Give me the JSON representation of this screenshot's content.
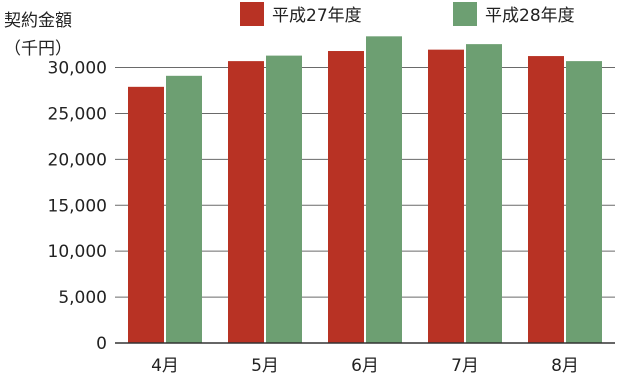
{
  "chart_data": {
    "type": "bar",
    "ylabel_line1": "契約金額",
    "ylabel_line2": "（千円）",
    "categories": [
      "4月",
      "5月",
      "6月",
      "7月",
      "8月"
    ],
    "series": [
      {
        "name": "平成27年度",
        "values": [
          27900,
          30700,
          31800,
          31950,
          31250
        ],
        "color": "#b83224"
      },
      {
        "name": "平成28年度",
        "values": [
          29100,
          31300,
          33400,
          32550,
          30700
        ],
        "color": "#6d9f72"
      }
    ],
    "ylim": [
      0,
      33000
    ],
    "yticks": [
      0,
      5000,
      10000,
      15000,
      20000,
      25000,
      30000
    ],
    "ytick_labels": [
      "0",
      "5,000",
      "10,000",
      "15,000",
      "20,000",
      "25,000",
      "30,000"
    ],
    "grid": true,
    "legend_position": "top"
  }
}
